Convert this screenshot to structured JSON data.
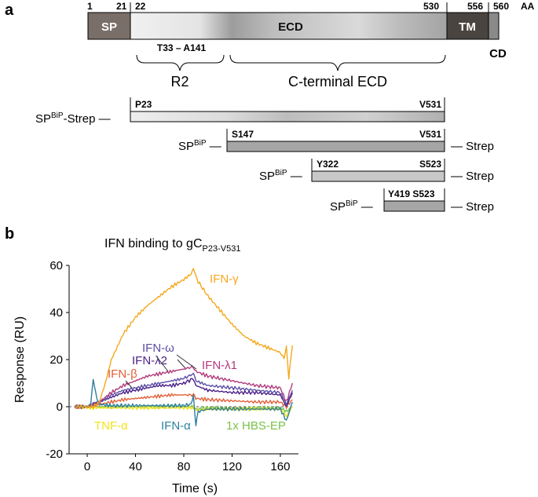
{
  "panel_a": {
    "label": "a",
    "aa_label": "AA",
    "positions": [
      "1",
      "21",
      "22",
      "530",
      "556",
      "560"
    ],
    "domains": {
      "sp": "SP",
      "ecd": "ECD",
      "tm": "TM",
      "cd": "CD"
    },
    "regions": {
      "r2_range": "T33 – A141",
      "r2": "R2",
      "cterm": "C-terminal ECD"
    },
    "constructs": [
      {
        "prefix": "SP",
        "sup": "BiP",
        "suffix": "-Strep —",
        "start": "P23",
        "end": "V531",
        "tail": ""
      },
      {
        "prefix": "SP",
        "sup": "BiP",
        "suffix": " —",
        "start": "S147",
        "end": "V531",
        "tail": "— Strep"
      },
      {
        "prefix": "SP",
        "sup": "BiP",
        "suffix": " —",
        "start": "Y322",
        "end": "S523",
        "tail": "— Strep"
      },
      {
        "prefix": "SP",
        "sup": "BiP",
        "suffix": " —",
        "start": "Y419 S523",
        "end": "",
        "tail": "— Strep"
      }
    ],
    "colors": {
      "sp": "#7a6e68",
      "tm": "#4a4440",
      "cd": "#8a8a8a",
      "ecd_light": "#ececec",
      "ecd_dark": "#9a9a9a"
    }
  },
  "panel_b": {
    "label": "b"
  },
  "chart_data": {
    "type": "line",
    "title": "IFN binding to gC",
    "title_sub": "P23-V531",
    "xlabel": "Time (s)",
    "ylabel": "Response (RU)",
    "xlim": [
      -15,
      175
    ],
    "ylim": [
      -20,
      60
    ],
    "xticks": [
      0,
      40,
      80,
      120,
      160
    ],
    "yticks": [
      -20,
      0,
      20,
      40,
      60
    ],
    "series": [
      {
        "name": "IFN-γ",
        "color": "#f4a81d",
        "x": [
          -10,
          0,
          5,
          10,
          15,
          20,
          30,
          40,
          50,
          60,
          70,
          80,
          85,
          88,
          90,
          92,
          100,
          110,
          120,
          130,
          140,
          150,
          160,
          163,
          165,
          167,
          170
        ],
        "y": [
          0,
          0,
          0,
          2,
          10,
          20,
          31,
          38,
          43,
          47,
          51,
          54,
          56,
          58,
          56,
          53,
          47,
          41,
          35,
          30,
          27,
          25,
          23,
          20,
          26,
          12,
          26
        ]
      },
      {
        "name": "IFN-λ1",
        "color": "#b23a7c",
        "x": [
          -10,
          0,
          5,
          10,
          20,
          30,
          40,
          50,
          60,
          70,
          80,
          88,
          90,
          100,
          120,
          140,
          160,
          165,
          170
        ],
        "y": [
          0,
          0,
          1,
          2,
          6,
          9,
          11,
          13,
          14,
          15,
          16,
          17,
          15,
          13,
          11,
          9,
          8,
          2,
          10
        ]
      },
      {
        "name": "IFN-ω",
        "color": "#5a4ea6",
        "x": [
          -10,
          0,
          5,
          10,
          20,
          30,
          40,
          50,
          60,
          70,
          80,
          88,
          90,
          100,
          120,
          140,
          160,
          165,
          170
        ],
        "y": [
          0,
          0,
          1,
          2,
          5,
          7,
          8,
          9,
          10,
          11,
          12,
          14,
          11,
          9,
          8,
          7,
          6,
          1,
          7
        ]
      },
      {
        "name": "IFN-λ2",
        "color": "#4a1f86",
        "x": [
          -10,
          0,
          5,
          10,
          20,
          30,
          40,
          50,
          60,
          70,
          80,
          88,
          90,
          100,
          120,
          140,
          160,
          165,
          170
        ],
        "y": [
          0,
          0,
          1,
          2,
          4,
          6,
          7,
          8,
          9,
          9,
          10,
          12,
          9,
          7,
          6,
          6,
          5,
          0,
          6
        ]
      },
      {
        "name": "IFN-β",
        "color": "#e2603a",
        "x": [
          -10,
          0,
          5,
          10,
          20,
          30,
          40,
          50,
          60,
          70,
          80,
          88,
          90,
          100,
          120,
          140,
          160,
          165,
          170
        ],
        "y": [
          0,
          0,
          0,
          1,
          2,
          3,
          3.5,
          4,
          4.5,
          5,
          5,
          5,
          3.5,
          3,
          2.5,
          2,
          2,
          0,
          3
        ]
      },
      {
        "name": "IFN-α",
        "color": "#2e7fa0",
        "x": [
          -10,
          0,
          3,
          5,
          8,
          10,
          20,
          40,
          60,
          80,
          86,
          88,
          90,
          92,
          100,
          120,
          140,
          160,
          165,
          170
        ],
        "y": [
          0,
          0,
          2,
          11,
          4,
          1,
          0.5,
          0.5,
          0.5,
          0.5,
          1,
          5,
          -8,
          -2,
          -1,
          -1,
          -1,
          -1,
          -6,
          2
        ]
      },
      {
        "name": "TNF-α",
        "color": "#f2e318",
        "x": [
          -10,
          0,
          10,
          20,
          40,
          60,
          80,
          88,
          90,
          100,
          120,
          140,
          160,
          165,
          170
        ],
        "y": [
          0,
          -0.5,
          -0.5,
          -0.5,
          -0.5,
          -0.5,
          -0.5,
          -0.5,
          -1.5,
          -1,
          -1,
          -1,
          -1,
          -4,
          0
        ]
      },
      {
        "name": "1x HBS-EP",
        "color": "#7bc24a",
        "x": [
          -10,
          0,
          10,
          20,
          40,
          60,
          80,
          88,
          90,
          100,
          120,
          140,
          160,
          165,
          170
        ],
        "y": [
          0,
          0,
          0,
          0,
          0,
          0,
          0,
          0,
          -1,
          -0.5,
          -0.5,
          -0.5,
          -0.5,
          -2,
          0
        ]
      }
    ]
  }
}
